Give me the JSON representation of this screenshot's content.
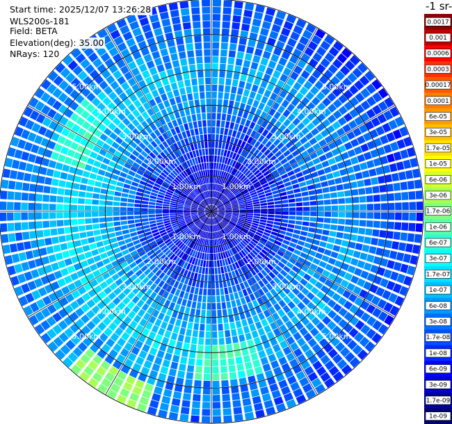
{
  "header": {
    "start_time": "Start time: 2025/12/07 13:26:28",
    "instrument": "WLS200s-181",
    "field": "Field: BETA",
    "elevation": "Elevation(deg): 35.00",
    "nrays": "NRays: 120"
  },
  "colorbar": {
    "unit_label": "-1 sr-",
    "ticks": [
      "0.0017",
      "0.001",
      "0.0006",
      "0.0003",
      "0.00017",
      "0.0001",
      "6e-05",
      "3e-05",
      "1.7e-05",
      "1e-05",
      "6e-06",
      "3e-06",
      "1.7e-06",
      "1e-06",
      "6e-07",
      "3e-07",
      "1.7e-07",
      "1e-07",
      "6e-08",
      "3e-08",
      "1.7e-08",
      "1e-08",
      "6e-09",
      "3e-09",
      "1.7e-09",
      "1e-09"
    ],
    "colors": [
      "#8b0000",
      "#c00000",
      "#ff0000",
      "#ff3000",
      "#ff5a00",
      "#ff7e00",
      "#ff9a00",
      "#ffbe00",
      "#ffe000",
      "#ffff00",
      "#d4ff2b",
      "#aaff55",
      "#7fff80",
      "#55ffaa",
      "#2bffd4",
      "#00ffff",
      "#00e0ff",
      "#00c0ff",
      "#0099ff",
      "#0070ff",
      "#0050ff",
      "#0028ff",
      "#0000ff",
      "#0000d0",
      "#00009a",
      "#000070"
    ]
  },
  "chart_data": {
    "type": "heatmap",
    "projection": "polar-ppi",
    "field": "BETA",
    "elevation_deg": 35.0,
    "n_rays": 120,
    "range_rings_km": [
      1,
      2,
      3,
      4,
      5
    ],
    "max_range_km": 6.0,
    "grid": true,
    "ring_labels": [
      "1.00km",
      "2.00km",
      "3.00km",
      "4.00km",
      "5.00km"
    ],
    "scale": "log",
    "value_range": [
      1e-09,
      0.0017
    ],
    "radial_profile_log10": [
      {
        "range_km": 0.0,
        "beta_log10": -8.6
      },
      {
        "range_km": 1.0,
        "beta_log10": -8.3
      },
      {
        "range_km": 2.0,
        "beta_log10": -7.9
      },
      {
        "range_km": 3.0,
        "beta_log10": -7.3
      },
      {
        "range_km": 4.0,
        "beta_log10": -7.0
      },
      {
        "range_km": 5.0,
        "beta_log10": -7.5
      },
      {
        "range_km": 6.0,
        "beta_log10": -7.7
      }
    ],
    "hotspots": [
      {
        "azimuth_deg": 210,
        "range_km": 5.6,
        "beta_log10": -5.7
      },
      {
        "azimuth_deg": 175,
        "range_km": 4.2,
        "beta_log10": -6.2
      },
      {
        "azimuth_deg": 300,
        "range_km": 4.2,
        "beta_log10": -6.3
      }
    ]
  }
}
